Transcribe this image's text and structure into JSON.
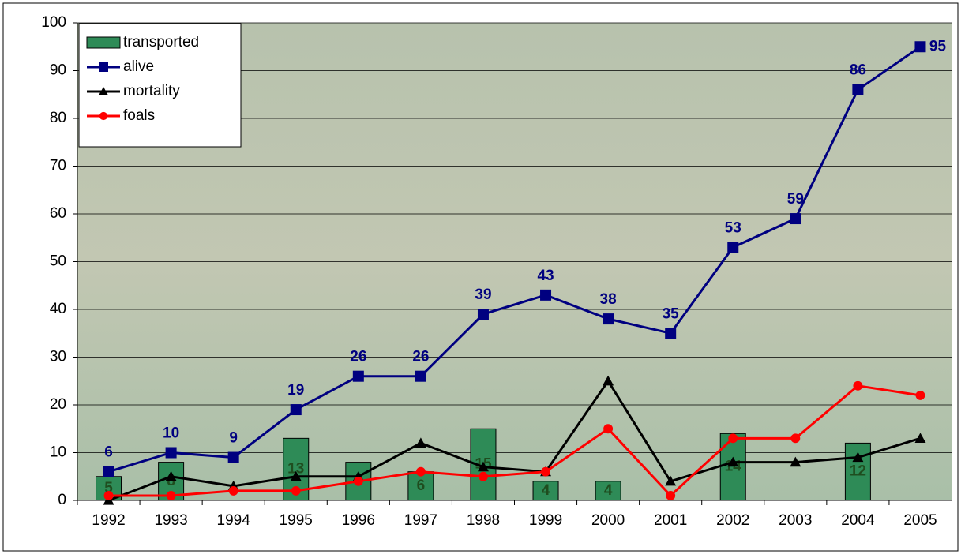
{
  "chart_data": {
    "type": "bar-line",
    "categories": [
      "1992",
      "1993",
      "1994",
      "1995",
      "1996",
      "1997",
      "1998",
      "1999",
      "2000",
      "2001",
      "2002",
      "2003",
      "2004",
      "2005"
    ],
    "series": [
      {
        "name": "transported",
        "type": "bar",
        "color": "#2e8b57",
        "label_color": "#1f4d1f",
        "data_labels": true,
        "values": [
          5,
          8,
          null,
          13,
          8,
          6,
          15,
          4,
          4,
          null,
          14,
          null,
          12,
          null
        ]
      },
      {
        "name": "alive",
        "type": "line",
        "marker": "square",
        "color": "#000080",
        "label_color": "#000080",
        "data_labels": true,
        "values": [
          6,
          10,
          9,
          19,
          26,
          26,
          39,
          43,
          38,
          35,
          53,
          59,
          86,
          95
        ]
      },
      {
        "name": "mortality",
        "type": "line",
        "marker": "triangle",
        "color": "#000000",
        "data_labels": false,
        "values": [
          0,
          5,
          3,
          5,
          5,
          12,
          7,
          6,
          25,
          4,
          8,
          8,
          9,
          13
        ]
      },
      {
        "name": "foals",
        "type": "line",
        "marker": "circle",
        "color": "#ff0000",
        "data_labels": false,
        "values": [
          1,
          1,
          2,
          2,
          4,
          6,
          5,
          6,
          15,
          1,
          13,
          13,
          24,
          22
        ]
      }
    ],
    "ylim": [
      0,
      100
    ],
    "yticks": [
      0,
      10,
      20,
      30,
      40,
      50,
      60,
      70,
      80,
      90,
      100
    ],
    "grid": true,
    "legend": "top-left"
  }
}
